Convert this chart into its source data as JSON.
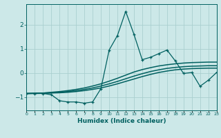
{
  "xlabel": "Humidex (Indice chaleur)",
  "x_values": [
    0,
    1,
    2,
    3,
    4,
    5,
    6,
    7,
    8,
    9,
    10,
    11,
    12,
    13,
    14,
    15,
    16,
    17,
    18,
    19,
    20,
    21,
    22,
    23
  ],
  "line1_y": [
    -0.85,
    -0.85,
    -0.85,
    -0.9,
    -1.15,
    -1.2,
    -1.2,
    -1.25,
    -1.2,
    -0.65,
    0.95,
    1.55,
    2.55,
    1.6,
    0.55,
    0.65,
    0.8,
    0.95,
    0.5,
    -0.02,
    0.02,
    -0.55,
    -0.3,
    0.02
  ],
  "line2_y": [
    -0.85,
    -0.84,
    -0.83,
    -0.8,
    -0.77,
    -0.73,
    -0.68,
    -0.62,
    -0.54,
    -0.45,
    -0.34,
    -0.22,
    -0.09,
    0.04,
    0.14,
    0.22,
    0.29,
    0.34,
    0.38,
    0.41,
    0.43,
    0.44,
    0.45,
    0.45
  ],
  "line3_y": [
    -0.85,
    -0.84,
    -0.83,
    -0.82,
    -0.8,
    -0.77,
    -0.73,
    -0.68,
    -0.62,
    -0.54,
    -0.45,
    -0.35,
    -0.24,
    -0.13,
    -0.03,
    0.06,
    0.13,
    0.19,
    0.23,
    0.26,
    0.28,
    0.29,
    0.3,
    0.3
  ],
  "line4_y": [
    -0.85,
    -0.85,
    -0.84,
    -0.83,
    -0.82,
    -0.8,
    -0.77,
    -0.73,
    -0.68,
    -0.62,
    -0.54,
    -0.45,
    -0.35,
    -0.25,
    -0.15,
    -0.06,
    0.02,
    0.08,
    0.13,
    0.16,
    0.18,
    0.19,
    0.2,
    0.2
  ],
  "bg_color": "#cce8e8",
  "line_color": "#006060",
  "grid_color": "#aacfcf",
  "ylim": [
    -1.55,
    2.85
  ],
  "yticks": [
    -1,
    0,
    1,
    2
  ],
  "xlim": [
    0,
    23
  ]
}
